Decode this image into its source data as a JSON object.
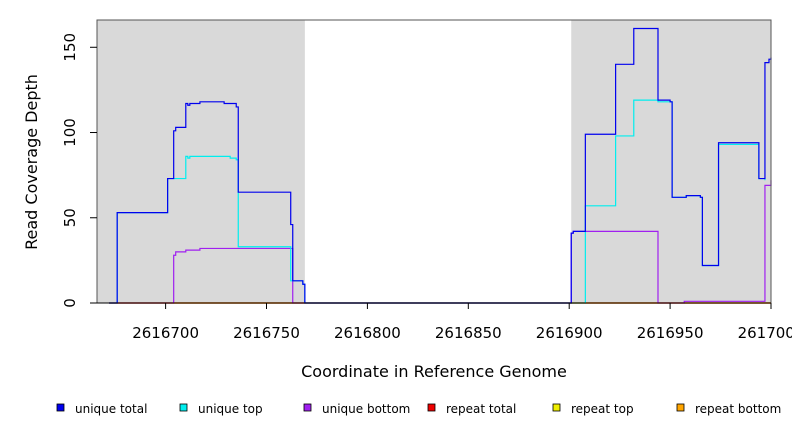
{
  "chart_data": {
    "type": "line",
    "title": "",
    "xlabel": "Coordinate in Reference Genome",
    "ylabel": "Read Coverage Depth",
    "xlim": [
      2616666,
      2617000
    ],
    "ylim": [
      0,
      166
    ],
    "x_ticks": [
      2616700,
      2616750,
      2616800,
      2616850,
      2616900,
      2616950,
      2617000
    ],
    "x_tick_labels": [
      "2616700",
      "2616750",
      "2616800",
      "2616850",
      "2616900",
      "2616950",
      "2617000"
    ],
    "y_ticks": [
      0,
      50,
      100,
      150
    ],
    "y_tick_labels": [
      "0",
      "50",
      "100",
      "150"
    ],
    "shaded_regions": [
      {
        "x0": 2616666,
        "x1": 2616769,
        "color": "#d9d9d9"
      },
      {
        "x0": 2616901,
        "x1": 2617000,
        "color": "#d9d9d9"
      }
    ],
    "grid": false,
    "legend_position": "bottom",
    "series": [
      {
        "name": "unique total",
        "color": "#0000ee",
        "step": true,
        "points": [
          [
            2616672,
            0
          ],
          [
            2616676,
            53
          ],
          [
            2616701,
            73
          ],
          [
            2616704,
            101
          ],
          [
            2616705,
            103
          ],
          [
            2616710,
            117
          ],
          [
            2616711,
            116
          ],
          [
            2616712,
            117
          ],
          [
            2616717,
            118
          ],
          [
            2616729,
            117
          ],
          [
            2616735,
            115
          ],
          [
            2616736,
            65
          ],
          [
            2616762,
            46
          ],
          [
            2616763,
            13
          ],
          [
            2616768,
            11
          ],
          [
            2616769,
            0
          ],
          [
            2616901,
            41
          ],
          [
            2616902,
            42
          ],
          [
            2616908,
            99
          ],
          [
            2616923,
            140
          ],
          [
            2616932,
            161
          ],
          [
            2616944,
            119
          ],
          [
            2616950,
            118
          ],
          [
            2616951,
            62
          ],
          [
            2616958,
            63
          ],
          [
            2616965,
            62
          ],
          [
            2616966,
            22
          ],
          [
            2616974,
            94
          ],
          [
            2616994,
            73
          ],
          [
            2616997,
            141
          ],
          [
            2616999,
            143
          ],
          [
            2617000,
            144
          ]
        ]
      },
      {
        "name": "unique top",
        "color": "#00eeee",
        "step": true,
        "points": [
          [
            2616672,
            0
          ],
          [
            2616676,
            53
          ],
          [
            2616701,
            73
          ],
          [
            2616710,
            86
          ],
          [
            2616711,
            85
          ],
          [
            2616712,
            86
          ],
          [
            2616732,
            85
          ],
          [
            2616735,
            84
          ],
          [
            2616736,
            33
          ],
          [
            2616762,
            13
          ],
          [
            2616768,
            11
          ],
          [
            2616769,
            0
          ],
          [
            2616908,
            57
          ],
          [
            2616923,
            98
          ],
          [
            2616932,
            119
          ],
          [
            2616944,
            118
          ],
          [
            2616951,
            62
          ],
          [
            2616958,
            63
          ],
          [
            2616965,
            62
          ],
          [
            2616966,
            22
          ],
          [
            2616974,
            93
          ],
          [
            2616994,
            73
          ],
          [
            2616997,
            72
          ]
        ]
      },
      {
        "name": "unique bottom",
        "color": "#a020f0",
        "step": true,
        "points": [
          [
            2616672,
            0
          ],
          [
            2616704,
            28
          ],
          [
            2616705,
            30
          ],
          [
            2616710,
            31
          ],
          [
            2616717,
            32
          ],
          [
            2616763,
            0
          ],
          [
            2616901,
            41
          ],
          [
            2616902,
            42
          ],
          [
            2616944,
            0
          ],
          [
            2616957,
            1
          ],
          [
            2616997,
            69
          ],
          [
            2617000,
            72
          ]
        ]
      },
      {
        "name": "repeat total",
        "color": "#ee0000",
        "step": true,
        "points": [
          [
            2616672,
            0
          ],
          [
            2617000,
            0
          ]
        ]
      },
      {
        "name": "repeat top",
        "color": "#eeee00",
        "step": true,
        "points": [
          [
            2616672,
            0
          ],
          [
            2617000,
            0
          ]
        ]
      },
      {
        "name": "repeat bottom",
        "color": "#ffa500",
        "step": true,
        "points": [
          [
            2616672,
            0
          ],
          [
            2617000,
            0
          ]
        ]
      }
    ]
  }
}
